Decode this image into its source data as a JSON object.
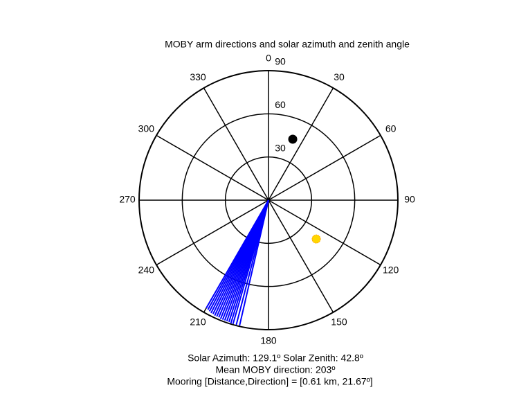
{
  "chart_data": {
    "type": "polar",
    "title": "MOBY arm directions and solar azimuth and zenith angle",
    "rlim": [
      0,
      90
    ],
    "rticks": [
      30,
      60,
      90
    ],
    "thetaticks": [
      0,
      30,
      60,
      90,
      120,
      150,
      180,
      210,
      240,
      270,
      300,
      330
    ],
    "series": [
      {
        "name": "MOBY arms",
        "kind": "line",
        "color": "#0000ff",
        "theta": [
          193,
          194.5,
          196,
          197,
          198,
          199,
          200,
          201,
          202,
          203,
          204,
          205,
          206,
          207,
          208,
          209,
          210
        ],
        "r": [
          89.5,
          89.5,
          89.5,
          89.5,
          89,
          89,
          89,
          89,
          89,
          88.5,
          88.5,
          88.5,
          88,
          88,
          87.5,
          87,
          86.6
        ]
      },
      {
        "name": "Mooring",
        "kind": "point",
        "color": "#000000",
        "theta": [
          21.7
        ],
        "r": [
          45.6
        ]
      },
      {
        "name": "Sun",
        "kind": "point",
        "color": "#ffd700",
        "theta": [
          129.1
        ],
        "r": [
          42.8
        ]
      }
    ],
    "annotations": [
      "Solar Azimuth: 129.1º   Solar Zenith: 42.8º",
      "Mean MOBY direction: 203º",
      "Mooring [Distance,Direction] = [0.61 km, 21.67º]"
    ]
  }
}
